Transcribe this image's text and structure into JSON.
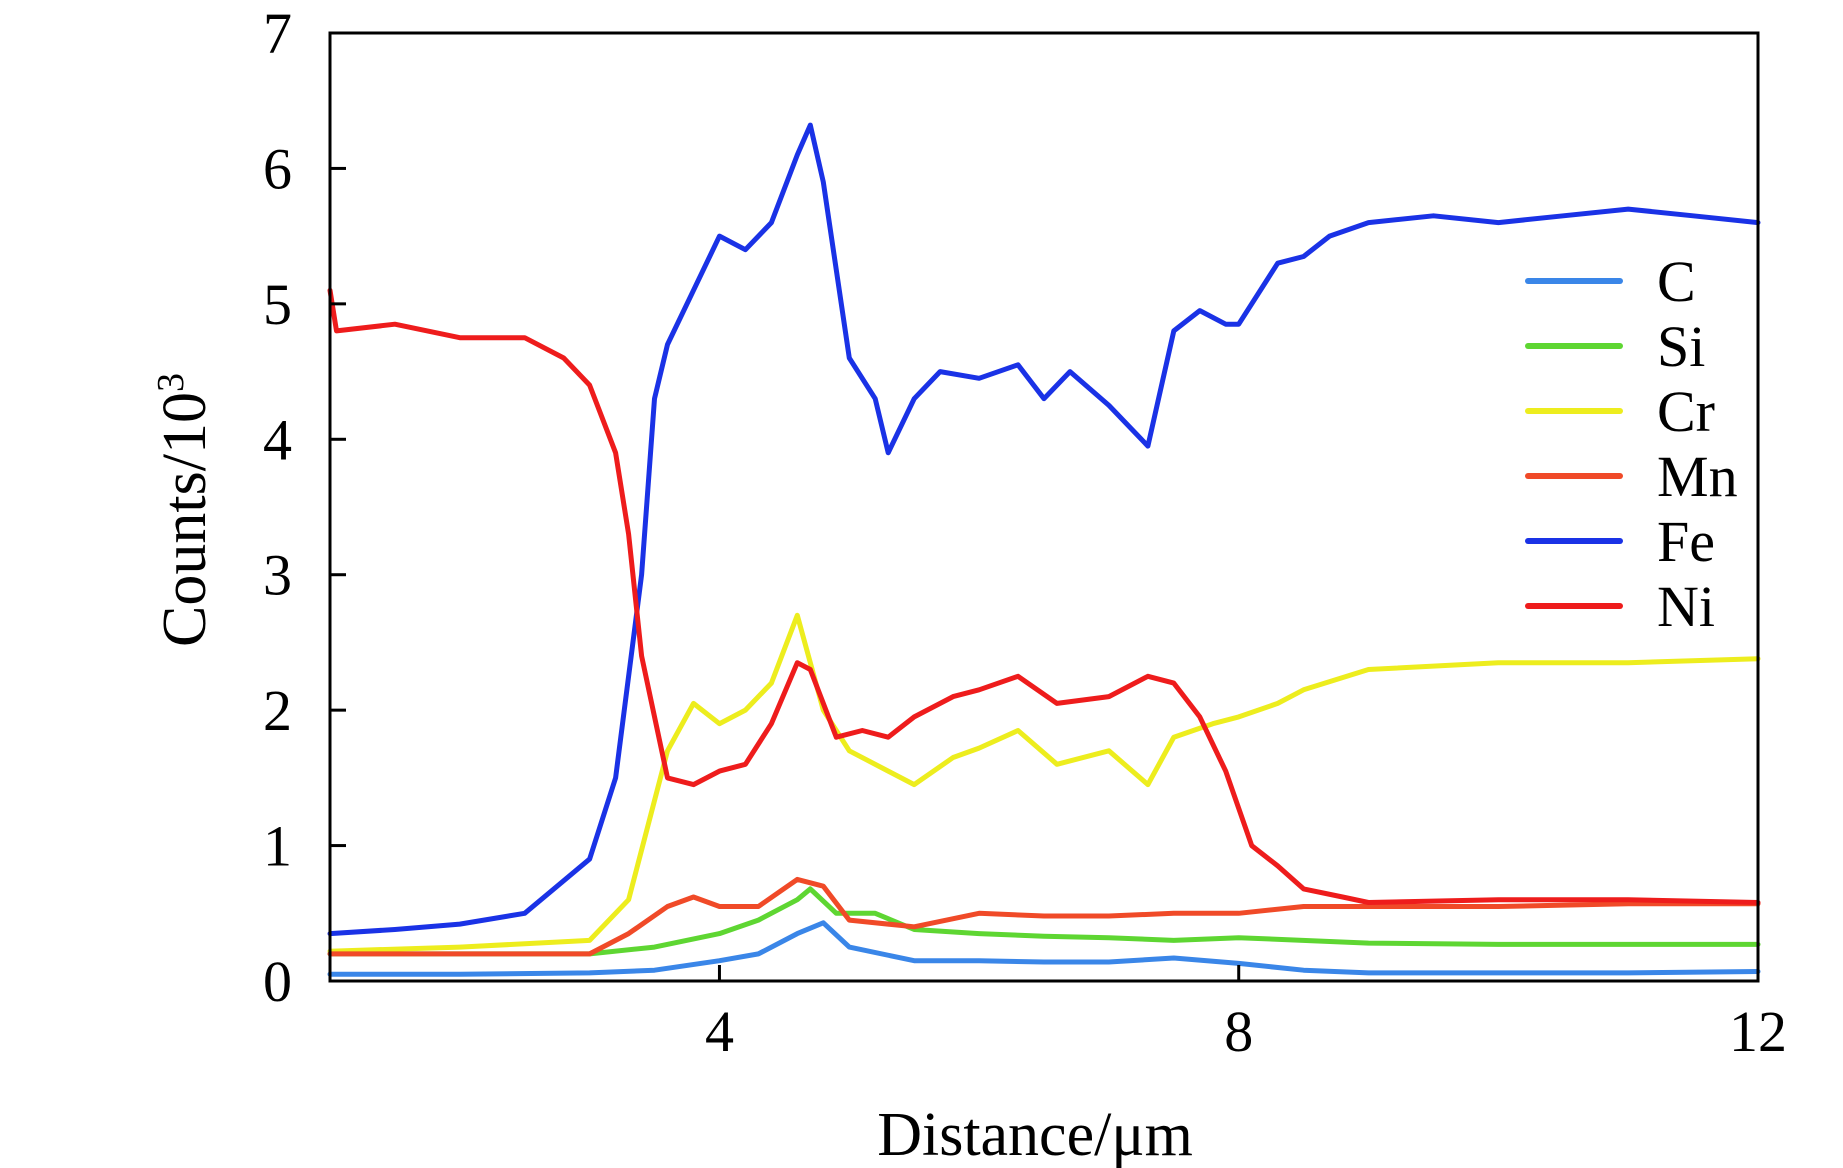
{
  "chart_data": {
    "type": "line",
    "title": "",
    "xlabel": "Distance/μm",
    "ylabel_main": "Counts/10",
    "ylabel_sup": "3",
    "xlim": [
      1,
      12
    ],
    "ylim": [
      0,
      7
    ],
    "x_ticks": [
      4,
      8,
      12
    ],
    "y_ticks": [
      0,
      1,
      2,
      3,
      4,
      5,
      6,
      7
    ],
    "grid": false,
    "legend_position": "top-right",
    "series": [
      {
        "name": "C",
        "color": "#3a86e8",
        "x": [
          1.0,
          2.0,
          3.0,
          3.5,
          4.0,
          4.3,
          4.6,
          4.8,
          5.0,
          5.5,
          6.0,
          6.5,
          7.0,
          7.5,
          8.0,
          8.5,
          9.0,
          10.0,
          11.0,
          12.0
        ],
        "y": [
          0.05,
          0.05,
          0.06,
          0.08,
          0.15,
          0.2,
          0.35,
          0.43,
          0.25,
          0.15,
          0.15,
          0.14,
          0.14,
          0.17,
          0.13,
          0.08,
          0.06,
          0.06,
          0.06,
          0.07
        ]
      },
      {
        "name": "Si",
        "color": "#5ed632",
        "x": [
          1.0,
          2.0,
          3.0,
          3.5,
          4.0,
          4.3,
          4.6,
          4.7,
          4.9,
          5.2,
          5.5,
          6.0,
          6.5,
          7.0,
          7.5,
          8.0,
          9.0,
          10.0,
          11.0,
          12.0
        ],
        "y": [
          0.2,
          0.2,
          0.2,
          0.25,
          0.35,
          0.45,
          0.6,
          0.68,
          0.5,
          0.5,
          0.38,
          0.35,
          0.33,
          0.32,
          0.3,
          0.32,
          0.28,
          0.27,
          0.27,
          0.27
        ]
      },
      {
        "name": "Cr",
        "color": "#eded1e",
        "x": [
          1.0,
          2.0,
          3.0,
          3.3,
          3.6,
          3.8,
          4.0,
          4.2,
          4.4,
          4.6,
          4.8,
          5.0,
          5.3,
          5.5,
          5.8,
          6.0,
          6.3,
          6.6,
          7.0,
          7.3,
          7.5,
          7.8,
          8.0,
          8.3,
          8.5,
          9.0,
          10.0,
          11.0,
          12.0
        ],
        "y": [
          0.22,
          0.25,
          0.3,
          0.6,
          1.7,
          2.05,
          1.9,
          2.0,
          2.2,
          2.7,
          2.0,
          1.7,
          1.55,
          1.45,
          1.65,
          1.72,
          1.85,
          1.6,
          1.7,
          1.45,
          1.8,
          1.9,
          1.95,
          2.05,
          2.15,
          2.3,
          2.35,
          2.35,
          2.38
        ]
      },
      {
        "name": "Mn",
        "color": "#f04a28",
        "x": [
          1.0,
          2.0,
          3.0,
          3.3,
          3.6,
          3.8,
          4.0,
          4.3,
          4.6,
          4.8,
          5.0,
          5.5,
          6.0,
          6.5,
          7.0,
          7.5,
          8.0,
          8.5,
          9.0,
          10.0,
          11.0,
          12.0
        ],
        "y": [
          0.2,
          0.2,
          0.2,
          0.35,
          0.55,
          0.62,
          0.55,
          0.55,
          0.75,
          0.7,
          0.45,
          0.4,
          0.5,
          0.48,
          0.48,
          0.5,
          0.5,
          0.55,
          0.55,
          0.55,
          0.57,
          0.57
        ]
      },
      {
        "name": "Fe",
        "color": "#1a32e6",
        "x": [
          1.0,
          1.5,
          2.0,
          2.5,
          3.0,
          3.2,
          3.4,
          3.5,
          3.6,
          3.8,
          4.0,
          4.2,
          4.4,
          4.6,
          4.7,
          4.8,
          5.0,
          5.2,
          5.3,
          5.5,
          5.7,
          6.0,
          6.3,
          6.5,
          6.7,
          7.0,
          7.3,
          7.5,
          7.7,
          7.9,
          8.0,
          8.3,
          8.5,
          8.7,
          9.0,
          9.5,
          10.0,
          10.5,
          11.0,
          11.5,
          12.0
        ],
        "y": [
          0.35,
          0.38,
          0.42,
          0.5,
          0.9,
          1.5,
          3.0,
          4.3,
          4.7,
          5.1,
          5.5,
          5.4,
          5.6,
          6.1,
          6.32,
          5.9,
          4.6,
          4.3,
          3.9,
          4.3,
          4.5,
          4.45,
          4.55,
          4.3,
          4.5,
          4.25,
          3.95,
          4.8,
          4.95,
          4.85,
          4.85,
          5.3,
          5.35,
          5.5,
          5.6,
          5.65,
          5.6,
          5.65,
          5.7,
          5.65,
          5.6
        ]
      },
      {
        "name": "Ni",
        "color": "#ee1c1c",
        "x": [
          1.0,
          1.05,
          1.5,
          2.0,
          2.5,
          2.8,
          3.0,
          3.2,
          3.3,
          3.4,
          3.6,
          3.8,
          4.0,
          4.2,
          4.4,
          4.6,
          4.7,
          4.9,
          5.1,
          5.3,
          5.5,
          5.8,
          6.0,
          6.3,
          6.6,
          7.0,
          7.3,
          7.5,
          7.7,
          7.9,
          8.1,
          8.3,
          8.5,
          8.8,
          9.0,
          10.0,
          11.0,
          12.0
        ],
        "y": [
          5.1,
          4.8,
          4.85,
          4.75,
          4.75,
          4.6,
          4.4,
          3.9,
          3.3,
          2.4,
          1.5,
          1.45,
          1.55,
          1.6,
          1.9,
          2.35,
          2.3,
          1.8,
          1.85,
          1.8,
          1.95,
          2.1,
          2.15,
          2.25,
          2.05,
          2.1,
          2.25,
          2.2,
          1.95,
          1.55,
          1.0,
          0.85,
          0.68,
          0.62,
          0.58,
          0.6,
          0.6,
          0.58
        ]
      }
    ]
  }
}
